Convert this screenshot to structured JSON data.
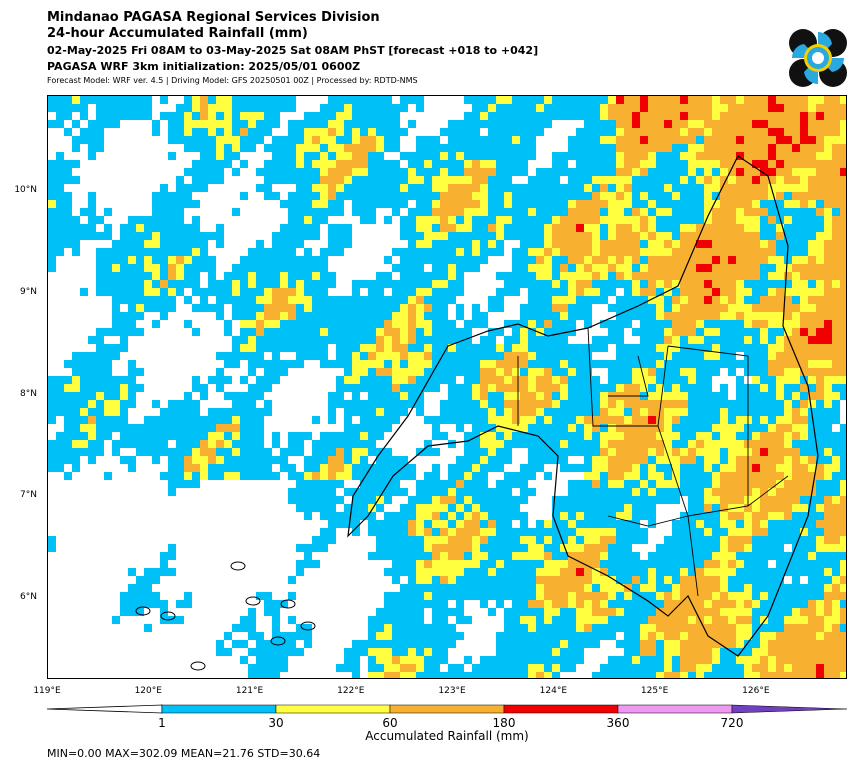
{
  "header": {
    "title": "Mindanao PAGASA Regional Services Division",
    "subtitle": "24-hour Accumulated Rainfall (mm)",
    "period": "02-May-2025 Fri 08AM to 03-May-2025 Sat 08AM PhST [forecast +018 to +042]",
    "init": "PAGASA WRF 3km initialization: 2025/05/01 0600Z",
    "model_info": "Forecast Model: WRF ver. 4.5 | Driving Model: GFS 20250501 00Z | Processed by: RDTD-NMS"
  },
  "map": {
    "lat_labels": [
      "10°N",
      "9°N",
      "8°N",
      "7°N",
      "6°N"
    ],
    "lon_labels": [
      "119°E",
      "120°E",
      "121°E",
      "122°E",
      "123°E",
      "124°E",
      "125°E",
      "126°E"
    ],
    "lat_values": [
      10,
      9,
      8,
      7,
      6
    ],
    "lon_values": [
      119,
      120,
      121,
      122,
      123,
      124,
      125,
      126
    ],
    "extent": {
      "lon_min": 119,
      "lon_max": 126.9,
      "lat_min": 5.2,
      "lat_max": 10.95
    }
  },
  "colorbar": {
    "title": "Accumulated Rainfall (mm)",
    "ticks": [
      "1",
      "30",
      "60",
      "180",
      "360",
      "720"
    ],
    "colors": [
      "#00c0f8",
      "#ffff40",
      "#f8b030",
      "#f00000",
      "#f098f0",
      "#7040c0"
    ]
  },
  "stats": "MIN=0.00   MAX=302.09   MEAN=21.76   STD=30.64"
}
